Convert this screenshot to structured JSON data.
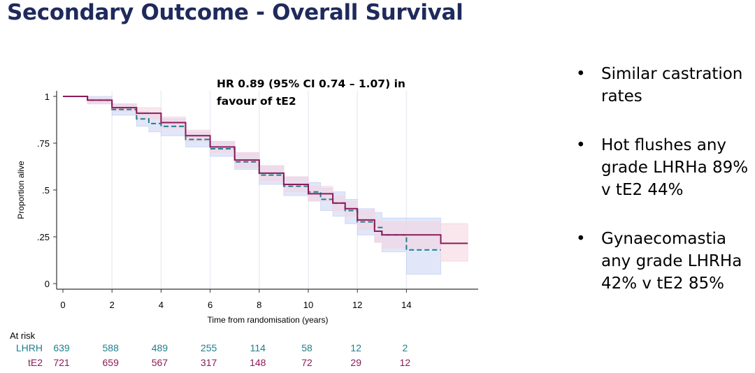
{
  "slide": {
    "title": "Secondary Outcome - Overall Survival",
    "annotation_line1": "HR 0.89 (95% CI 0.74 – 1.07) in",
    "annotation_line2": "favour of tE2",
    "bullets": [
      {
        "symbol": "•",
        "text": "Similar castration rates"
      },
      {
        "symbol": "•",
        "text": "Hot flushes any grade LHRHa 89% v tE2 44%"
      },
      {
        "symbol": "•",
        "text": "Gynaecomastia any grade LHRHa 42% v tE2 85%"
      }
    ]
  },
  "chart_data": {
    "type": "line",
    "xlabel": "Time from randomisation (years)",
    "ylabel": "Proportion alive",
    "xlim": [
      0,
      16.8
    ],
    "ylim": [
      0,
      1.03
    ],
    "x_ticks": [
      0,
      2,
      4,
      6,
      8,
      10,
      12,
      14
    ],
    "y_ticks": [
      {
        "value": 0,
        "label": "0"
      },
      {
        "value": 0.25,
        "label": ".25"
      },
      {
        "value": 0.5,
        "label": ".5"
      },
      {
        "value": 0.75,
        "label": ".75"
      },
      {
        "value": 1,
        "label": "1"
      }
    ],
    "grid": true,
    "series": [
      {
        "name": "LHRH",
        "color": "#1f7f8c",
        "ci_color": "#c9d4f4",
        "style": "dashed",
        "x": [
          0,
          1,
          2,
          3,
          3.5,
          4,
          5,
          6,
          7,
          8,
          9,
          10,
          10.5,
          11,
          11.5,
          12,
          12.7,
          13,
          14,
          15.4
        ],
        "y": [
          1.0,
          0.98,
          0.93,
          0.88,
          0.855,
          0.84,
          0.77,
          0.72,
          0.65,
          0.58,
          0.52,
          0.49,
          0.45,
          0.43,
          0.39,
          0.33,
          0.3,
          0.26,
          0.18,
          0.18
        ],
        "ci_upper": [
          1.0,
          1.0,
          0.96,
          0.92,
          0.9,
          0.88,
          0.81,
          0.76,
          0.7,
          0.63,
          0.57,
          0.54,
          0.51,
          0.49,
          0.45,
          0.4,
          0.38,
          0.35,
          0.35,
          0.35
        ],
        "ci_lower": [
          1.0,
          0.96,
          0.9,
          0.84,
          0.81,
          0.79,
          0.73,
          0.68,
          0.61,
          0.53,
          0.47,
          0.44,
          0.39,
          0.36,
          0.32,
          0.26,
          0.22,
          0.17,
          0.05,
          0.05
        ]
      },
      {
        "name": "tE2",
        "color": "#8c1a5a",
        "ci_color": "#f6d3e0",
        "style": "solid",
        "x": [
          0,
          1,
          2,
          3,
          4,
          5,
          6,
          7,
          8,
          9,
          10,
          11,
          11.5,
          12,
          12.7,
          13,
          14,
          15.4,
          16.5
        ],
        "y": [
          1.0,
          0.98,
          0.94,
          0.91,
          0.86,
          0.79,
          0.73,
          0.66,
          0.59,
          0.53,
          0.48,
          0.43,
          0.4,
          0.34,
          0.28,
          0.26,
          0.26,
          0.215,
          0.215
        ],
        "ci_upper": [
          1.0,
          0.99,
          0.96,
          0.94,
          0.89,
          0.82,
          0.76,
          0.7,
          0.63,
          0.57,
          0.52,
          0.47,
          0.44,
          0.39,
          0.34,
          0.33,
          0.33,
          0.32,
          0.32
        ],
        "ci_lower": [
          1.0,
          0.96,
          0.92,
          0.88,
          0.83,
          0.76,
          0.7,
          0.62,
          0.55,
          0.49,
          0.44,
          0.39,
          0.36,
          0.29,
          0.22,
          0.19,
          0.19,
          0.12,
          0.12
        ]
      }
    ],
    "at_risk": {
      "title": "At risk",
      "times": [
        0,
        2,
        4,
        6,
        8,
        10,
        12,
        14
      ],
      "rows": [
        {
          "label": "LHRH",
          "color": "#1f7f8c",
          "values": [
            639,
            588,
            489,
            255,
            114,
            58,
            12,
            2
          ]
        },
        {
          "label": "tE2",
          "color": "#8c1a5a",
          "values": [
            721,
            659,
            567,
            317,
            148,
            72,
            29,
            12
          ]
        }
      ]
    }
  }
}
